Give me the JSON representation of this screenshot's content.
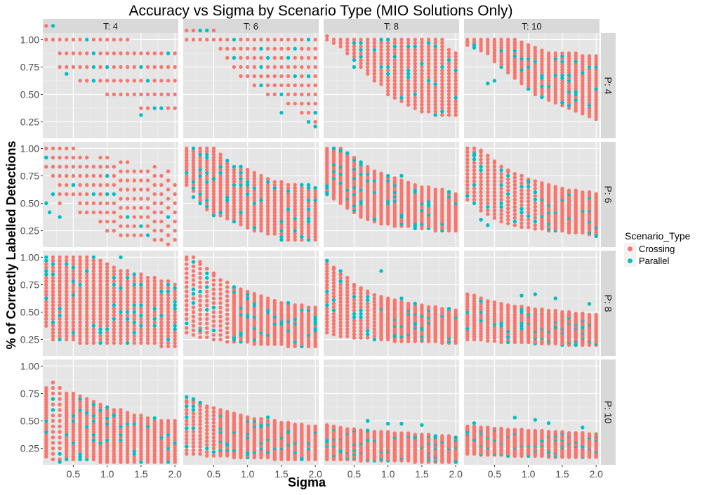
{
  "chart_data": {
    "type": "scatter",
    "title": "Accuracy vs Sigma by Scenario Type (MIO Solutions Only)",
    "xlabel": "Sigma",
    "ylabel": "% of Correctly Labelled Detections",
    "xlim": [
      0.05,
      2.05
    ],
    "ylim": [
      0.1,
      1.06
    ],
    "x_ticks": [
      0.5,
      1.0,
      1.5,
      2.0
    ],
    "x_tick_labels": [
      "0.5",
      "1.0",
      "1.5",
      "2.0"
    ],
    "y_ticks": [
      0.25,
      0.5,
      0.75,
      1.0
    ],
    "y_tick_labels": [
      "0.25",
      "0.50",
      "0.75",
      "1.00"
    ],
    "grid": true,
    "facet_cols": {
      "variable": "T",
      "labels": [
        "T: 4",
        "T: 6",
        "T: 8",
        "T: 10"
      ],
      "values": [
        4,
        6,
        8,
        10
      ]
    },
    "facet_rows": {
      "variable": "P",
      "labels": [
        "P: 4",
        "P: 6",
        "P: 8",
        "P: 10"
      ],
      "values": [
        4,
        6,
        8,
        10
      ]
    },
    "legend": {
      "title": "Scenario_Type",
      "position": "right",
      "entries": [
        {
          "name": "Crossing",
          "color": "#F8766D"
        },
        {
          "name": "Parallel",
          "color": "#00BFC4"
        }
      ]
    },
    "x_values": [
      0.1,
      0.2,
      0.3,
      0.4,
      0.5,
      0.6,
      0.7,
      0.8,
      0.9,
      1.0,
      1.1,
      1.2,
      1.3,
      1.4,
      1.5,
      1.6,
      1.7,
      1.8,
      1.9,
      2.0
    ],
    "panels": [
      {
        "T": 4,
        "P": 4,
        "max": [
          1.0,
          1.0,
          1.0,
          1.0,
          1.0,
          1.0,
          1.0,
          1.0,
          1.0,
          1.0,
          1.0,
          1.0,
          1.0,
          0.875,
          0.875,
          0.875,
          0.875,
          0.875,
          0.875,
          0.875
        ],
        "min": [
          1.0,
          1.0,
          0.75,
          0.75,
          0.75,
          0.625,
          0.625,
          0.625,
          0.625,
          0.5,
          0.5,
          0.5,
          0.5,
          0.5,
          0.375,
          0.375,
          0.375,
          0.375,
          0.375,
          0.375
        ],
        "step": 0.125,
        "parallel_outliers": [
          [
            1.5,
            0.3125
          ],
          [
            0.4,
            0.6875
          ],
          [
            0.8,
            0.625
          ],
          [
            1.8,
            0.375
          ]
        ]
      },
      {
        "T": 6,
        "P": 4,
        "max": [
          1.0,
          1.0,
          1.0,
          1.0,
          1.0,
          1.0,
          1.0,
          1.0,
          1.0,
          1.0,
          1.0,
          1.0,
          1.0,
          1.0,
          1.0,
          1.0,
          1.0,
          1.0,
          1.0,
          1.0
        ],
        "min": [
          1.0,
          1.0,
          1.0,
          1.0,
          1.0,
          0.917,
          0.833,
          0.75,
          0.667,
          0.667,
          0.583,
          0.583,
          0.5,
          0.5,
          0.5,
          0.417,
          0.417,
          0.333,
          0.333,
          0.25
        ],
        "step": 0.0833,
        "parallel_outliers": [
          [
            2.0,
            0.208
          ],
          [
            1.9,
            0.25
          ],
          [
            1.5,
            0.333
          ]
        ]
      },
      {
        "T": 8,
        "P": 4,
        "max": [
          1.0,
          1.0,
          1.0,
          1.0,
          1.0,
          1.0,
          1.0,
          1.0,
          1.0,
          1.0,
          1.0,
          1.0,
          1.0,
          1.0,
          1.0,
          1.0,
          1.0,
          1.0,
          0.906,
          0.875
        ],
        "min": [
          1.0,
          0.969,
          0.938,
          0.875,
          0.813,
          0.75,
          0.688,
          0.625,
          0.594,
          0.5,
          0.469,
          0.438,
          0.406,
          0.375,
          0.344,
          0.344,
          0.313,
          0.313,
          0.313,
          0.313
        ],
        "step": 0.03125,
        "parallel_outliers": [
          [
            0.9,
            1.0
          ],
          [
            1.0,
            1.0
          ],
          [
            0.5,
            0.75
          ]
        ]
      },
      {
        "T": 10,
        "P": 4,
        "max": [
          1.0,
          1.0,
          1.0,
          1.0,
          1.0,
          1.0,
          1.0,
          1.0,
          0.975,
          0.95,
          0.925,
          0.9,
          0.875,
          0.875,
          0.875,
          0.875,
          0.875,
          0.85,
          0.85,
          0.85
        ],
        "min": [
          0.95,
          0.925,
          0.9,
          0.875,
          0.8,
          0.75,
          0.7,
          0.65,
          0.6,
          0.55,
          0.5,
          0.475,
          0.45,
          0.425,
          0.4,
          0.375,
          0.35,
          0.325,
          0.3,
          0.275
        ],
        "step": 0.025,
        "parallel_outliers": [
          [
            0.4,
            0.6
          ],
          [
            0.5,
            0.625
          ],
          [
            1.2,
            0.475
          ],
          [
            1.5,
            0.425
          ],
          [
            0.2,
            0.95
          ]
        ]
      },
      {
        "T": 4,
        "P": 6,
        "max": [
          1.0,
          1.0,
          1.0,
          1.0,
          1.0,
          0.958,
          0.958,
          0.875,
          0.875,
          0.875,
          0.833,
          0.833,
          0.833,
          0.792,
          0.792,
          0.792,
          0.792,
          0.75,
          0.75,
          0.708
        ],
        "min": [
          0.833,
          0.75,
          0.5,
          0.583,
          0.583,
          0.417,
          0.417,
          0.417,
          0.333,
          0.25,
          0.25,
          0.208,
          0.208,
          0.208,
          0.208,
          0.208,
          0.167,
          0.167,
          0.125,
          0.167
        ],
        "step": 0.0833,
        "parallel_outliers": [
          [
            0.1,
            0.917
          ],
          [
            0.1,
            0.5
          ],
          [
            0.15,
            0.417
          ],
          [
            0.3,
            0.375
          ],
          [
            0.2,
            0.583
          ],
          [
            1.0,
            0.75
          ],
          [
            0.5,
            0.667
          ]
        ]
      },
      {
        "T": 6,
        "P": 6,
        "max": [
          1.0,
          1.0,
          1.0,
          1.0,
          1.0,
          0.944,
          0.889,
          0.833,
          0.833,
          0.806,
          0.778,
          0.75,
          0.722,
          0.694,
          0.694,
          0.667,
          0.667,
          0.667,
          0.667,
          0.639
        ],
        "min": [
          0.667,
          0.611,
          0.5,
          0.444,
          0.389,
          0.389,
          0.361,
          0.333,
          0.306,
          0.278,
          0.25,
          0.25,
          0.222,
          0.222,
          0.194,
          0.167,
          0.167,
          0.167,
          0.167,
          0.167
        ],
        "step": 0.0278,
        "parallel_outliers": [
          [
            0.2,
            0.556
          ],
          [
            0.3,
            0.5
          ],
          [
            1.5,
            0.167
          ],
          [
            1.9,
            0.639
          ],
          [
            0.5,
            0.722
          ]
        ]
      },
      {
        "T": 8,
        "P": 6,
        "max": [
          1.0,
          1.0,
          1.0,
          0.958,
          0.917,
          0.875,
          0.833,
          0.792,
          0.771,
          0.75,
          0.729,
          0.708,
          0.688,
          0.667,
          0.646,
          0.646,
          0.625,
          0.625,
          0.604,
          0.583
        ],
        "min": [
          0.583,
          0.542,
          0.5,
          0.458,
          0.417,
          0.375,
          0.354,
          0.333,
          0.313,
          0.313,
          0.292,
          0.292,
          0.292,
          0.271,
          0.271,
          0.271,
          0.25,
          0.25,
          0.25,
          0.25
        ],
        "step": 0.0208,
        "parallel_outliers": [
          [
            0.2,
            1.0
          ],
          [
            0.3,
            0.979
          ],
          [
            0.6,
            0.875
          ],
          [
            1.2,
            0.75
          ],
          [
            0.8,
            0.354
          ]
        ]
      },
      {
        "T": 10,
        "P": 6,
        "max": [
          1.0,
          1.0,
          0.983,
          0.933,
          0.883,
          0.833,
          0.8,
          0.767,
          0.75,
          0.717,
          0.7,
          0.683,
          0.667,
          0.65,
          0.633,
          0.617,
          0.617,
          0.6,
          0.6,
          0.583
        ],
        "min": [
          0.533,
          0.5,
          0.433,
          0.4,
          0.367,
          0.333,
          0.317,
          0.3,
          0.283,
          0.283,
          0.267,
          0.267,
          0.25,
          0.25,
          0.25,
          0.233,
          0.233,
          0.233,
          0.217,
          0.217
        ],
        "step": 0.0167,
        "parallel_outliers": [
          [
            0.2,
            0.95
          ],
          [
            0.3,
            0.35
          ],
          [
            0.4,
            0.3
          ],
          [
            1.0,
            0.7
          ],
          [
            2.0,
            0.2
          ]
        ]
      },
      {
        "T": 4,
        "P": 8,
        "max": [
          1.0,
          1.0,
          1.0,
          1.0,
          1.0,
          1.0,
          1.0,
          1.0,
          0.969,
          0.938,
          0.906,
          0.875,
          0.875,
          0.844,
          0.844,
          0.813,
          0.813,
          0.781,
          0.781,
          0.75
        ],
        "min": [
          0.375,
          0.25,
          0.25,
          0.25,
          0.25,
          0.219,
          0.219,
          0.219,
          0.219,
          0.219,
          0.219,
          0.219,
          0.219,
          0.219,
          0.219,
          0.219,
          0.219,
          0.188,
          0.188,
          0.188
        ],
        "step": 0.03125,
        "parallel_outliers": [
          [
            1.2,
            1.0
          ],
          [
            0.2,
            0.406
          ],
          [
            0.7,
            0.875
          ],
          [
            1.9,
            0.25
          ],
          [
            1.5,
            0.75
          ]
        ]
      },
      {
        "T": 6,
        "P": 8,
        "max": [
          1.0,
          1.0,
          0.958,
          0.896,
          0.854,
          0.792,
          0.771,
          0.729,
          0.708,
          0.688,
          0.667,
          0.646,
          0.625,
          0.604,
          0.583,
          0.583,
          0.563,
          0.563,
          0.542,
          0.542
        ],
        "min": [
          0.313,
          0.292,
          0.271,
          0.271,
          0.25,
          0.25,
          0.229,
          0.229,
          0.229,
          0.229,
          0.208,
          0.208,
          0.208,
          0.208,
          0.208,
          0.188,
          0.188,
          0.188,
          0.188,
          0.188
        ],
        "step": 0.0208,
        "parallel_outliers": [
          [
            0.3,
            0.333
          ],
          [
            0.5,
            0.333
          ],
          [
            1.0,
            0.625
          ],
          [
            1.3,
            0.5
          ],
          [
            0.2,
            0.958
          ]
        ]
      },
      {
        "T": 8,
        "P": 8,
        "max": [
          0.938,
          0.906,
          0.844,
          0.813,
          0.75,
          0.719,
          0.688,
          0.656,
          0.641,
          0.625,
          0.609,
          0.594,
          0.578,
          0.563,
          0.563,
          0.547,
          0.547,
          0.531,
          0.531,
          0.516
        ],
        "min": [
          0.313,
          0.297,
          0.281,
          0.281,
          0.266,
          0.266,
          0.266,
          0.25,
          0.25,
          0.25,
          0.234,
          0.234,
          0.234,
          0.234,
          0.234,
          0.234,
          0.234,
          0.219,
          0.219,
          0.219
        ],
        "step": 0.0156,
        "parallel_outliers": [
          [
            0.1,
            0.969
          ],
          [
            0.9,
            0.875
          ],
          [
            1.2,
            0.625
          ],
          [
            1.4,
            0.578
          ],
          [
            0.3,
            0.875
          ]
        ]
      },
      {
        "T": 10,
        "P": 8,
        "max": [
          0.663,
          0.65,
          0.625,
          0.6,
          0.588,
          0.575,
          0.563,
          0.55,
          0.55,
          0.538,
          0.525,
          0.525,
          0.513,
          0.513,
          0.5,
          0.5,
          0.488,
          0.488,
          0.475,
          0.475
        ],
        "min": [
          0.25,
          0.25,
          0.25,
          0.238,
          0.238,
          0.225,
          0.225,
          0.225,
          0.225,
          0.225,
          0.213,
          0.213,
          0.213,
          0.213,
          0.2,
          0.2,
          0.2,
          0.2,
          0.2,
          0.2
        ],
        "step": 0.0125,
        "parallel_outliers": [
          [
            1.1,
            0.663
          ],
          [
            1.4,
            0.625
          ],
          [
            1.7,
            0.2
          ],
          [
            0.9,
            0.65
          ],
          [
            1.9,
            0.575
          ]
        ]
      },
      {
        "T": 4,
        "P": 10,
        "max": [
          0.8,
          0.85,
          0.8,
          0.75,
          0.75,
          0.725,
          0.7,
          0.675,
          0.65,
          0.625,
          0.6,
          0.6,
          0.575,
          0.55,
          0.55,
          0.525,
          0.525,
          0.5,
          0.5,
          0.5
        ],
        "min": [
          0.175,
          0.15,
          0.15,
          0.15,
          0.15,
          0.15,
          0.15,
          0.15,
          0.125,
          0.125,
          0.125,
          0.125,
          0.125,
          0.125,
          0.125,
          0.125,
          0.125,
          0.125,
          0.125,
          0.125
        ],
        "step": 0.025,
        "parallel_outliers": [
          [
            0.3,
            0.125
          ],
          [
            0.4,
            0.15
          ],
          [
            0.8,
            0.65
          ],
          [
            1.1,
            0.55
          ],
          [
            0.2,
            0.7
          ]
        ]
      },
      {
        "T": 6,
        "P": 10,
        "max": [
          0.683,
          0.683,
          0.65,
          0.633,
          0.617,
          0.6,
          0.583,
          0.567,
          0.55,
          0.533,
          0.517,
          0.517,
          0.5,
          0.5,
          0.483,
          0.483,
          0.467,
          0.467,
          0.45,
          0.45
        ],
        "min": [
          0.2,
          0.2,
          0.2,
          0.183,
          0.183,
          0.183,
          0.183,
          0.167,
          0.167,
          0.167,
          0.167,
          0.167,
          0.167,
          0.15,
          0.15,
          0.15,
          0.15,
          0.15,
          0.15,
          0.15
        ],
        "step": 0.0167,
        "parallel_outliers": [
          [
            0.1,
            0.717
          ],
          [
            0.2,
            0.7
          ],
          [
            0.3,
            0.667
          ],
          [
            1.3,
            0.533
          ],
          [
            1.6,
            0.4
          ]
        ]
      },
      {
        "T": 8,
        "P": 10,
        "max": [
          0.463,
          0.45,
          0.438,
          0.425,
          0.425,
          0.413,
          0.413,
          0.4,
          0.4,
          0.4,
          0.388,
          0.388,
          0.388,
          0.375,
          0.375,
          0.375,
          0.363,
          0.363,
          0.363,
          0.35
        ],
        "min": [
          0.15,
          0.15,
          0.15,
          0.15,
          0.15,
          0.138,
          0.138,
          0.138,
          0.138,
          0.138,
          0.138,
          0.138,
          0.138,
          0.125,
          0.125,
          0.125,
          0.125,
          0.125,
          0.125,
          0.125
        ],
        "step": 0.0125,
        "parallel_outliers": [
          [
            0.7,
            0.5
          ],
          [
            1.0,
            0.475
          ],
          [
            1.2,
            0.475
          ],
          [
            1.5,
            0.463
          ],
          [
            2.0,
            0.125
          ]
        ]
      },
      {
        "T": 10,
        "P": 10,
        "max": [
          0.45,
          0.45,
          0.44,
          0.44,
          0.43,
          0.43,
          0.42,
          0.42,
          0.42,
          0.41,
          0.41,
          0.41,
          0.4,
          0.4,
          0.4,
          0.39,
          0.39,
          0.39,
          0.38,
          0.38
        ],
        "min": [
          0.2,
          0.2,
          0.19,
          0.19,
          0.19,
          0.19,
          0.18,
          0.18,
          0.18,
          0.18,
          0.18,
          0.18,
          0.17,
          0.17,
          0.17,
          0.17,
          0.17,
          0.17,
          0.17,
          0.17
        ],
        "step": 0.01,
        "parallel_outliers": [
          [
            0.8,
            0.53
          ],
          [
            1.1,
            0.51
          ],
          [
            0.2,
            0.48
          ],
          [
            1.3,
            0.48
          ],
          [
            1.8,
            0.44
          ]
        ]
      }
    ]
  }
}
